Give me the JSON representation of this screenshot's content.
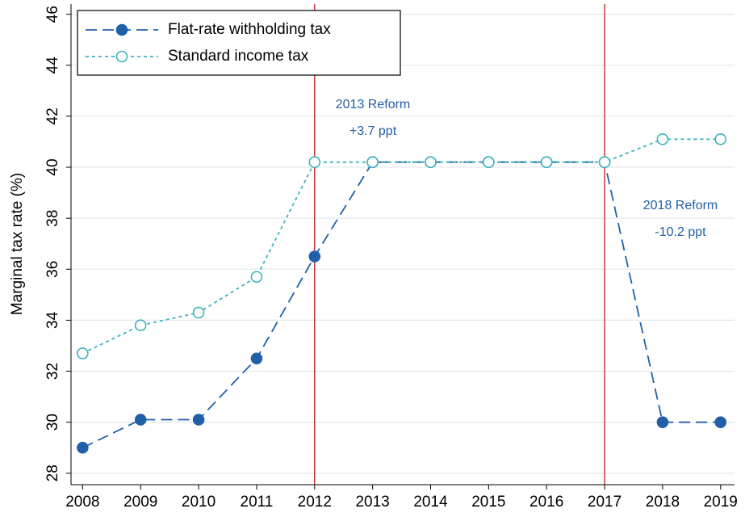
{
  "chart_data": {
    "type": "line",
    "y_label": "Marginal tax rate (%)",
    "x": [
      2008,
      2009,
      2010,
      2011,
      2012,
      2013,
      2014,
      2015,
      2016,
      2017,
      2018,
      2019
    ],
    "series": [
      {
        "name": "Flat-rate withholding tax",
        "color": "#2160a8",
        "marker": "filled",
        "values": [
          29,
          30.1,
          30.1,
          32.5,
          36.5,
          40.2,
          40.2,
          40.2,
          40.2,
          40.2,
          30.0,
          30.0
        ]
      },
      {
        "name": "Standard income tax",
        "color": "#3cb4be",
        "marker": "hollow",
        "values": [
          32.7,
          33.8,
          34.3,
          35.7,
          40.2,
          40.2,
          40.2,
          40.2,
          40.2,
          40.2,
          41.1,
          41.1
        ]
      }
    ],
    "reference_lines": {
      "color": "#c0181d",
      "x": [
        2012,
        2017
      ]
    },
    "annotations": [
      [
        "2013 Reform",
        "+3.7 ppt"
      ],
      [
        "2018 Reform",
        "-10.2 ppt"
      ]
    ],
    "xlim": [
      2007.8,
      2019.24
    ],
    "ylim": [
      27.55,
      46.4
    ],
    "xticks": [
      2008,
      2009,
      2010,
      2011,
      2012,
      2013,
      2014,
      2015,
      2016,
      2017,
      2018,
      2019
    ],
    "yticks": [
      28,
      30,
      32,
      34,
      36,
      38,
      40,
      42,
      44,
      46
    ],
    "grid": true,
    "legend": "top-left"
  }
}
